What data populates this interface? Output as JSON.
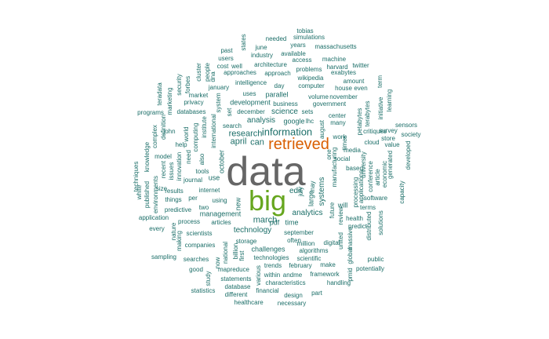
{
  "colors": {
    "teal": "#1b6e68",
    "gray": "#666666",
    "orange": "#d95f02",
    "green": "#66a61e"
  },
  "words": [
    {
      "text": "data",
      "color": "gray"
    },
    {
      "text": "big",
      "color": "green"
    },
    {
      "text": "retrieved",
      "color": "orange"
    },
    {
      "text": "information",
      "color": "teal"
    },
    {
      "text": "research",
      "color": "teal"
    },
    {
      "text": "april",
      "color": "teal"
    },
    {
      "text": "can",
      "color": "teal"
    },
    {
      "text": "edit",
      "color": "teal"
    },
    {
      "text": "march",
      "color": "teal"
    },
    {
      "text": "analytics",
      "color": "teal"
    },
    {
      "text": "technology",
      "color": "teal"
    },
    {
      "text": "management",
      "color": "teal"
    },
    {
      "text": "systems",
      "color": "teal"
    },
    {
      "text": "science",
      "color": "teal"
    },
    {
      "text": "analysis",
      "color": "teal"
    },
    {
      "text": "development",
      "color": "teal"
    },
    {
      "text": "parallel",
      "color": "teal"
    },
    {
      "text": "google",
      "color": "teal"
    },
    {
      "text": "new",
      "color": "teal"
    },
    {
      "text": "large",
      "color": "teal"
    },
    {
      "text": "october",
      "color": "teal"
    },
    {
      "text": "challenges",
      "color": "teal"
    },
    {
      "text": "september",
      "color": "teal"
    },
    {
      "text": "pdf",
      "color": "teal"
    },
    {
      "text": "time",
      "color": "teal"
    },
    {
      "text": "use",
      "color": "teal"
    },
    {
      "text": "internet",
      "color": "teal"
    },
    {
      "text": "using",
      "color": "teal"
    },
    {
      "text": "articles",
      "color": "teal"
    },
    {
      "text": "million",
      "color": "teal"
    },
    {
      "text": "storage",
      "color": "teal"
    },
    {
      "text": "technologies",
      "color": "teal"
    },
    {
      "text": "algorithms",
      "color": "teal"
    },
    {
      "text": "digital",
      "color": "teal"
    },
    {
      "text": "scientific",
      "color": "teal"
    },
    {
      "text": "often",
      "color": "teal"
    },
    {
      "text": "government",
      "color": "teal"
    },
    {
      "text": "business",
      "color": "teal"
    },
    {
      "text": "volume",
      "color": "teal"
    },
    {
      "text": "november",
      "color": "teal"
    },
    {
      "text": "december",
      "color": "teal"
    },
    {
      "text": "sets",
      "color": "teal"
    },
    {
      "text": "search",
      "color": "teal"
    },
    {
      "text": "lhc",
      "color": "teal"
    },
    {
      "text": "center",
      "color": "teal"
    },
    {
      "text": "many",
      "color": "teal"
    },
    {
      "text": "media",
      "color": "teal"
    },
    {
      "text": "social",
      "color": "teal"
    },
    {
      "text": "based",
      "color": "teal"
    },
    {
      "text": "will",
      "color": "teal"
    },
    {
      "text": "day",
      "color": "teal"
    },
    {
      "text": "may",
      "color": "teal"
    },
    {
      "text": "july",
      "color": "teal"
    },
    {
      "text": "future",
      "color": "teal"
    },
    {
      "text": "review",
      "color": "teal"
    },
    {
      "text": "predict",
      "color": "teal"
    },
    {
      "text": "health",
      "color": "teal"
    },
    {
      "text": "united",
      "color": "teal"
    },
    {
      "text": "global",
      "color": "teal"
    },
    {
      "text": "massive",
      "color": "teal"
    },
    {
      "text": "public",
      "color": "teal"
    },
    {
      "text": "potentially",
      "color": "teal"
    },
    {
      "text": "distributed",
      "color": "teal"
    },
    {
      "text": "solutions",
      "color": "teal"
    },
    {
      "text": "processing",
      "color": "teal"
    },
    {
      "text": "software",
      "color": "teal"
    },
    {
      "text": "terms",
      "color": "teal"
    },
    {
      "text": "applications",
      "color": "teal"
    },
    {
      "text": "article",
      "color": "teal"
    },
    {
      "text": "conference",
      "color": "teal"
    },
    {
      "text": "economic",
      "color": "teal"
    },
    {
      "text": "generated",
      "color": "teal"
    },
    {
      "text": "university",
      "color": "teal"
    },
    {
      "text": "capacity",
      "color": "teal"
    },
    {
      "text": "developed",
      "color": "teal"
    },
    {
      "text": "value",
      "color": "teal"
    },
    {
      "text": "store",
      "color": "teal"
    },
    {
      "text": "cloud",
      "color": "teal"
    },
    {
      "text": "society",
      "color": "teal"
    },
    {
      "text": "survey",
      "color": "teal"
    },
    {
      "text": "critiques",
      "color": "teal"
    },
    {
      "text": "sensors",
      "color": "teal"
    },
    {
      "text": "petabytes",
      "color": "teal"
    },
    {
      "text": "terabytes",
      "color": "teal"
    },
    {
      "text": "initiative",
      "color": "teal"
    },
    {
      "text": "learning",
      "color": "teal"
    },
    {
      "text": "term",
      "color": "teal"
    },
    {
      "text": "manufacturing",
      "color": "teal"
    },
    {
      "text": "times",
      "color": "teal"
    },
    {
      "text": "one",
      "color": "teal"
    },
    {
      "text": "work",
      "color": "teal"
    },
    {
      "text": "august",
      "color": "teal"
    },
    {
      "text": "even",
      "color": "teal"
    },
    {
      "text": "house",
      "color": "teal"
    },
    {
      "text": "amount",
      "color": "teal"
    },
    {
      "text": "harvard",
      "color": "teal"
    },
    {
      "text": "twitter",
      "color": "teal"
    },
    {
      "text": "machine",
      "color": "teal"
    },
    {
      "text": "exabytes",
      "color": "teal"
    },
    {
      "text": "massachusetts",
      "color": "teal"
    },
    {
      "text": "simulations",
      "color": "teal"
    },
    {
      "text": "tobias",
      "color": "teal"
    },
    {
      "text": "needed",
      "color": "teal"
    },
    {
      "text": "years",
      "color": "teal"
    },
    {
      "text": "june",
      "color": "teal"
    },
    {
      "text": "available",
      "color": "teal"
    },
    {
      "text": "industry",
      "color": "teal"
    },
    {
      "text": "access",
      "color": "teal"
    },
    {
      "text": "problems",
      "color": "teal"
    },
    {
      "text": "architecture",
      "color": "teal"
    },
    {
      "text": "approach",
      "color": "teal"
    },
    {
      "text": "wikipedia",
      "color": "teal"
    },
    {
      "text": "computer",
      "color": "teal"
    },
    {
      "text": "states",
      "color": "teal"
    },
    {
      "text": "past",
      "color": "teal"
    },
    {
      "text": "users",
      "color": "teal"
    },
    {
      "text": "cost",
      "color": "teal"
    },
    {
      "text": "well",
      "color": "teal"
    },
    {
      "text": "dna",
      "color": "teal"
    },
    {
      "text": "approaches",
      "color": "teal"
    },
    {
      "text": "intelligence",
      "color": "teal"
    },
    {
      "text": "january",
      "color": "teal"
    },
    {
      "text": "uses",
      "color": "teal"
    },
    {
      "text": "market",
      "color": "teal"
    },
    {
      "text": "privacy",
      "color": "teal"
    },
    {
      "text": "databases",
      "color": "teal"
    },
    {
      "text": "system",
      "color": "teal"
    },
    {
      "text": "set",
      "color": "teal"
    },
    {
      "text": "people",
      "color": "teal"
    },
    {
      "text": "cluster",
      "color": "teal"
    },
    {
      "text": "forbes",
      "color": "teal"
    },
    {
      "text": "security",
      "color": "teal"
    },
    {
      "text": "marketing",
      "color": "teal"
    },
    {
      "text": "teradata",
      "color": "teal"
    },
    {
      "text": "programs",
      "color": "teal"
    },
    {
      "text": "complex",
      "color": "teal"
    },
    {
      "text": "definition",
      "color": "teal"
    },
    {
      "text": "john",
      "color": "teal"
    },
    {
      "text": "world",
      "color": "teal"
    },
    {
      "text": "computing",
      "color": "teal"
    },
    {
      "text": "institute",
      "color": "teal"
    },
    {
      "text": "international",
      "color": "teal"
    },
    {
      "text": "need",
      "color": "teal"
    },
    {
      "text": "also",
      "color": "teal"
    },
    {
      "text": "knowledge",
      "color": "teal"
    },
    {
      "text": "model",
      "color": "teal"
    },
    {
      "text": "help",
      "color": "teal"
    },
    {
      "text": "issues",
      "color": "teal"
    },
    {
      "text": "recent",
      "color": "teal"
    },
    {
      "text": "innovation",
      "color": "teal"
    },
    {
      "text": "tools",
      "color": "teal"
    },
    {
      "text": "journal",
      "color": "teal"
    },
    {
      "text": "techniques",
      "color": "teal"
    },
    {
      "text": "white",
      "color": "teal"
    },
    {
      "text": "published",
      "color": "teal"
    },
    {
      "text": "environments",
      "color": "teal"
    },
    {
      "text": "size",
      "color": "teal"
    },
    {
      "text": "results",
      "color": "teal"
    },
    {
      "text": "things",
      "color": "teal"
    },
    {
      "text": "per",
      "color": "teal"
    },
    {
      "text": "two",
      "color": "teal"
    },
    {
      "text": "predictive",
      "color": "teal"
    },
    {
      "text": "application",
      "color": "teal"
    },
    {
      "text": "nature",
      "color": "teal"
    },
    {
      "text": "every",
      "color": "teal"
    },
    {
      "text": "process",
      "color": "teal"
    },
    {
      "text": "scientists",
      "color": "teal"
    },
    {
      "text": "making",
      "color": "teal"
    },
    {
      "text": "companies",
      "color": "teal"
    },
    {
      "text": "sampling",
      "color": "teal"
    },
    {
      "text": "searches",
      "color": "teal"
    },
    {
      "text": "national",
      "color": "teal"
    },
    {
      "text": "billion",
      "color": "teal"
    },
    {
      "text": "first",
      "color": "teal"
    },
    {
      "text": "good",
      "color": "teal"
    },
    {
      "text": "study",
      "color": "teal"
    },
    {
      "text": "now",
      "color": "teal"
    },
    {
      "text": "mapreduce",
      "color": "teal"
    },
    {
      "text": "trends",
      "color": "teal"
    },
    {
      "text": "various",
      "color": "teal"
    },
    {
      "text": "within",
      "color": "teal"
    },
    {
      "text": "andme",
      "color": "teal"
    },
    {
      "text": "february",
      "color": "teal"
    },
    {
      "text": "make",
      "color": "teal"
    },
    {
      "text": "framework",
      "color": "teal"
    },
    {
      "text": "pmid",
      "color": "teal"
    },
    {
      "text": "statements",
      "color": "teal"
    },
    {
      "text": "characteristics",
      "color": "teal"
    },
    {
      "text": "handling",
      "color": "teal"
    },
    {
      "text": "database",
      "color": "teal"
    },
    {
      "text": "statistics",
      "color": "teal"
    },
    {
      "text": "different",
      "color": "teal"
    },
    {
      "text": "financial",
      "color": "teal"
    },
    {
      "text": "design",
      "color": "teal"
    },
    {
      "text": "part",
      "color": "teal"
    },
    {
      "text": "healthcare",
      "color": "teal"
    },
    {
      "text": "necessary",
      "color": "teal"
    }
  ]
}
